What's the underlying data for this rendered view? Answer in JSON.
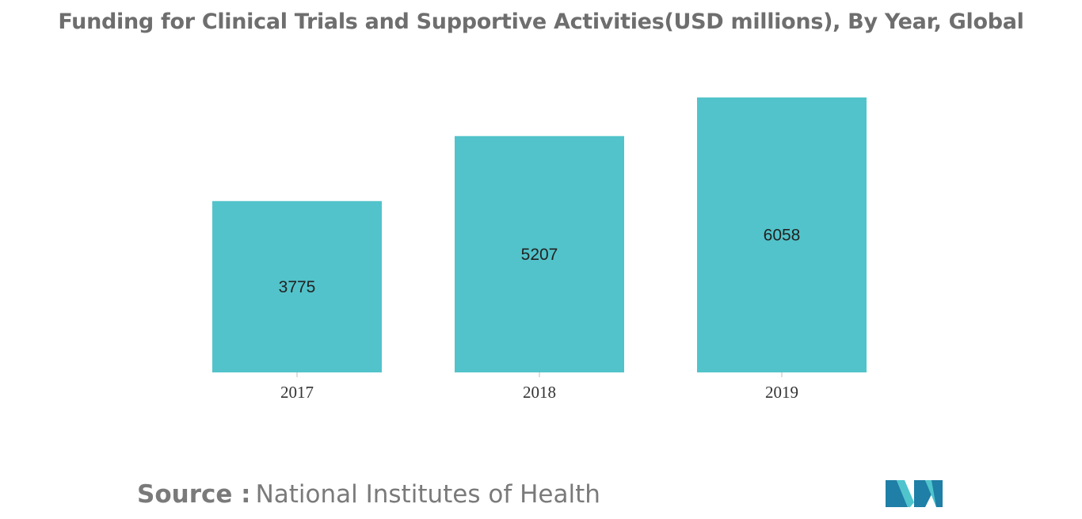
{
  "title": "Funding for Clinical Trials and Supportive Activities(USD millions), By Year, Global",
  "source": {
    "label": "Source :",
    "text": "National Institutes of Health"
  },
  "colors": {
    "bar": "#52c3ca",
    "title": "#6e6e6e",
    "source": "#7a7a7a",
    "logo_dark": "#1f7fa6",
    "logo_light": "#4fc4cc"
  },
  "chart_data": {
    "type": "bar",
    "categories": [
      "2017",
      "2018",
      "2019"
    ],
    "values": [
      3775,
      5207,
      6058
    ],
    "ylim": [
      0,
      6058
    ],
    "data_labels": "inside-center",
    "grid": false,
    "legend": false
  }
}
